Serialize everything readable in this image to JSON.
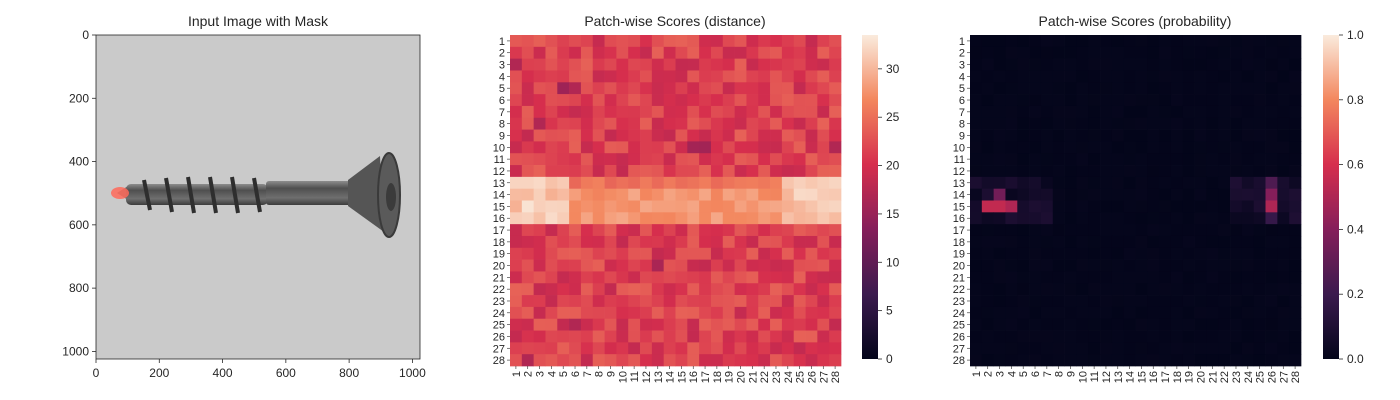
{
  "colors": {
    "background": "#ffffff",
    "axis": "#262626",
    "photo_background": "#c4c4c4",
    "screw_metal": "#5f5f5f",
    "mask_overlay": "#ff6a5a",
    "colormap": "rocket"
  },
  "chart_data": [
    {
      "type": "image",
      "title": "Input Image with Mask",
      "image_extent": [
        1024,
        1024
      ],
      "x_ticks": [
        0,
        200,
        400,
        600,
        800,
        1000
      ],
      "y_ticks": [
        0,
        200,
        400,
        600,
        800,
        1000
      ],
      "mask_region": {
        "x": [
          70,
          110
        ],
        "y": [
          470,
          530
        ]
      },
      "subject": "screw"
    },
    {
      "type": "heatmap",
      "title": "Patch-wise Scores (distance)",
      "x_tick_labels": [
        "1",
        "2",
        "3",
        "4",
        "5",
        "6",
        "7",
        "8",
        "9",
        "10",
        "11",
        "12",
        "13",
        "14",
        "15",
        "16",
        "17",
        "18",
        "19",
        "20",
        "21",
        "22",
        "23",
        "24",
        "25",
        "26",
        "27",
        "28"
      ],
      "y_tick_labels": [
        "1",
        "2",
        "3",
        "4",
        "5",
        "6",
        "7",
        "8",
        "9",
        "10",
        "11",
        "12",
        "13",
        "14",
        "15",
        "16",
        "17",
        "18",
        "19",
        "20",
        "21",
        "22",
        "23",
        "24",
        "25",
        "26",
        "27",
        "28"
      ],
      "colorbar": {
        "min": 0,
        "max": 33.5,
        "ticks": [
          0,
          5,
          10,
          15,
          20,
          25,
          30
        ]
      },
      "grid_size": 28,
      "values_summary": "values ≈17–25 across most patches; rows 13–16 bright band ≈27–33 strongest at cols 1–5 and 24–28; darker patches ≈15–17 scattered (e.g. row 5 col 5, row 10 col 16)"
    },
    {
      "type": "heatmap",
      "title": "Patch-wise Scores (probability)",
      "x_tick_labels": [
        "1",
        "2",
        "3",
        "4",
        "5",
        "6",
        "7",
        "8",
        "9",
        "10",
        "11",
        "12",
        "13",
        "14",
        "15",
        "16",
        "17",
        "18",
        "19",
        "20",
        "21",
        "22",
        "23",
        "24",
        "25",
        "26",
        "27",
        "28"
      ],
      "y_tick_labels": [
        "1",
        "2",
        "3",
        "4",
        "5",
        "6",
        "7",
        "8",
        "9",
        "10",
        "11",
        "12",
        "13",
        "14",
        "15",
        "16",
        "17",
        "18",
        "19",
        "20",
        "21",
        "22",
        "23",
        "24",
        "25",
        "26",
        "27",
        "28"
      ],
      "colorbar": {
        "min": 0,
        "max": 1.0,
        "ticks": [
          "0.0",
          "0.2",
          "0.4",
          "0.6",
          "0.8",
          "1.0"
        ]
      },
      "grid_size": 28,
      "hotspots": [
        {
          "row": 15,
          "col": 2,
          "value": 0.55
        },
        {
          "row": 15,
          "col": 3,
          "value": 0.55
        },
        {
          "row": 15,
          "col": 4,
          "value": 0.5
        },
        {
          "row": 14,
          "col": 3,
          "value": 0.35
        },
        {
          "row": 15,
          "col": 26,
          "value": 0.5
        },
        {
          "row": 14,
          "col": 26,
          "value": 0.4
        },
        {
          "row": 13,
          "col": 26,
          "value": 0.25
        },
        {
          "row": 16,
          "col": 26,
          "value": 0.18
        }
      ],
      "values_summary": "near 0 everywhere except low (<0.2) halo around rows 13–16 at cols 1–6 and 24–28"
    }
  ]
}
